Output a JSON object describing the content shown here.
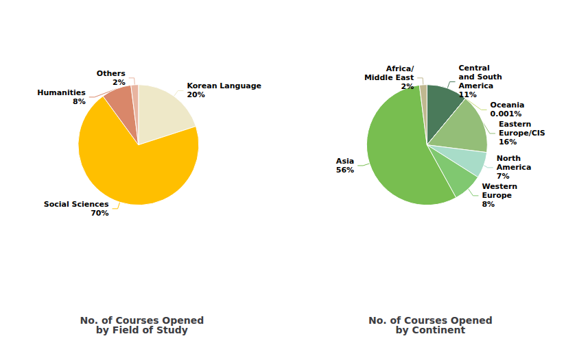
{
  "chart_data": [
    {
      "type": "pie",
      "title": "No. of Courses Opened\nby Field of Study",
      "categories": [
        "Korean Language",
        "Social Sciences",
        "Humanities",
        "Others"
      ],
      "values": [
        20,
        70,
        8,
        2
      ],
      "value_labels": [
        "20%",
        "70%",
        "8%",
        "2%"
      ],
      "colors": [
        "#EEE8C8",
        "#FFBF00",
        "#D9876A",
        "#E8B4A0"
      ],
      "data_labels": true
    },
    {
      "type": "pie",
      "title": "No. of Courses Opened\nby Continent",
      "categories": [
        "Central\nand South\nAmerica",
        "Oceania",
        "Eastern\nEurope/CIS",
        "North\nAmerica",
        "Western\nEurope",
        "Asia",
        "Africa/\nMiddle East"
      ],
      "values": [
        11,
        0.001,
        16,
        7,
        8,
        56,
        2
      ],
      "value_labels": [
        "11%",
        "0.001%",
        "16%",
        "7%",
        "8%",
        "56%",
        "2%"
      ],
      "colors": [
        "#4A7A5A",
        "#C8DC78",
        "#94BE78",
        "#A8DCC8",
        "#80C870",
        "#78BE50",
        "#C0B890"
      ],
      "data_labels": true
    }
  ]
}
